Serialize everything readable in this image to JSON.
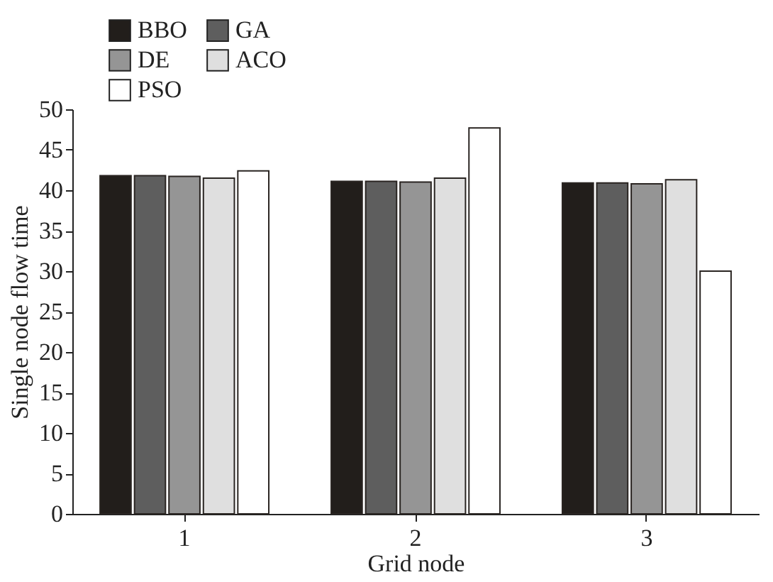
{
  "chart_data": {
    "type": "bar",
    "xlabel": "Grid node",
    "ylabel": "Single node flow time",
    "categories": [
      "1",
      "2",
      "3"
    ],
    "series": [
      {
        "name": "BBO",
        "color": "#221e1b",
        "values": [
          41.8,
          41.1,
          40.9
        ]
      },
      {
        "name": "GA",
        "color": "#5e5e5e",
        "values": [
          41.8,
          41.1,
          40.9
        ]
      },
      {
        "name": "DE",
        "color": "#959595",
        "values": [
          41.7,
          41.0,
          40.8
        ]
      },
      {
        "name": "ACO",
        "color": "#dfdfdf",
        "values": [
          41.5,
          41.5,
          41.3
        ]
      },
      {
        "name": "PSO",
        "color": "#ffffff",
        "values": [
          42.4,
          47.7,
          30.0
        ]
      }
    ],
    "ylim": [
      0,
      50
    ],
    "yticks": [
      0,
      5,
      10,
      15,
      20,
      25,
      30,
      35,
      40,
      45,
      50
    ],
    "grid": false,
    "legend": "top left"
  }
}
